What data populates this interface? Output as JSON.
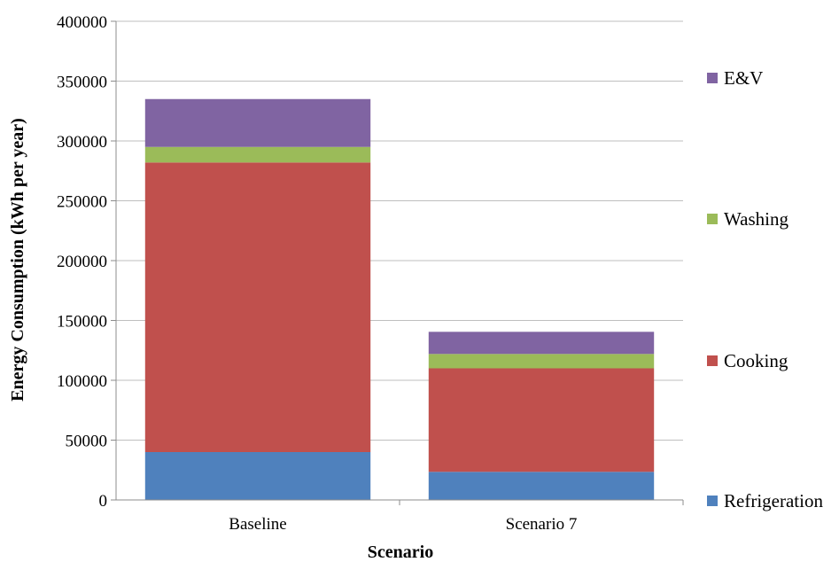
{
  "chart_data": {
    "type": "bar",
    "stacked": true,
    "title": "",
    "xlabel": "Scenario",
    "ylabel": "Energy Consumption (kWh per year)",
    "ylim": [
      0,
      400000
    ],
    "yticks": [
      0,
      50000,
      100000,
      150000,
      200000,
      250000,
      300000,
      350000,
      400000
    ],
    "ytick_labels": [
      "0",
      "50000",
      "100000",
      "150000",
      "200000",
      "250000",
      "300000",
      "350000",
      "400000"
    ],
    "grid": true,
    "legend_position": "right",
    "categories": [
      "Baseline",
      "Scenario 7"
    ],
    "series": [
      {
        "name": "Refrigeration",
        "color": "#4f81bd",
        "values": [
          40000,
          23500
        ]
      },
      {
        "name": "Cooking",
        "color": "#c0504d",
        "values": [
          242000,
          86500
        ]
      },
      {
        "name": "Washing",
        "color": "#9bbb59",
        "values": [
          13000,
          12000
        ]
      },
      {
        "name": "E&V",
        "color": "#8064a2",
        "values": [
          40000,
          18500
        ]
      }
    ]
  }
}
